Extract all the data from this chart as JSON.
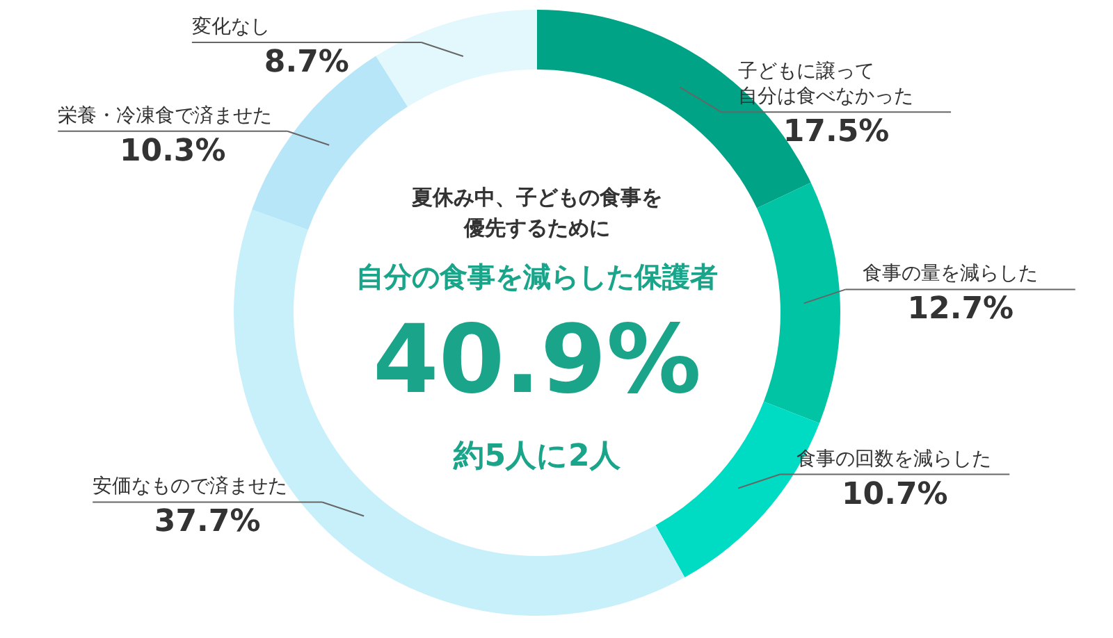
{
  "chart_data": {
    "type": "donut",
    "title": "夏休み中、子どもの食事を優先するために",
    "subtitle": "自分の食事を減らした保護者",
    "annotations": [
      "40.9%",
      "約5人に2人"
    ],
    "categories": [
      "子どもに譲って自分は食べなかった",
      "食事の量を減らした",
      "食事の回数を減らした",
      "安価なもので済ませた",
      "栄養・冷凍食で済ませた",
      "変化なし"
    ],
    "values": [
      17.5,
      12.7,
      10.7,
      37.7,
      10.3,
      8.7
    ],
    "value_labels": [
      "17.5%",
      "12.7%",
      "10.7%",
      "37.7%",
      "10.3%",
      "8.7%"
    ],
    "colors": [
      "#00a386",
      "#00c4a3",
      "#00dbc4",
      "#c8f0fb",
      "#b8e6f9",
      "#e2f8fd"
    ]
  }
}
